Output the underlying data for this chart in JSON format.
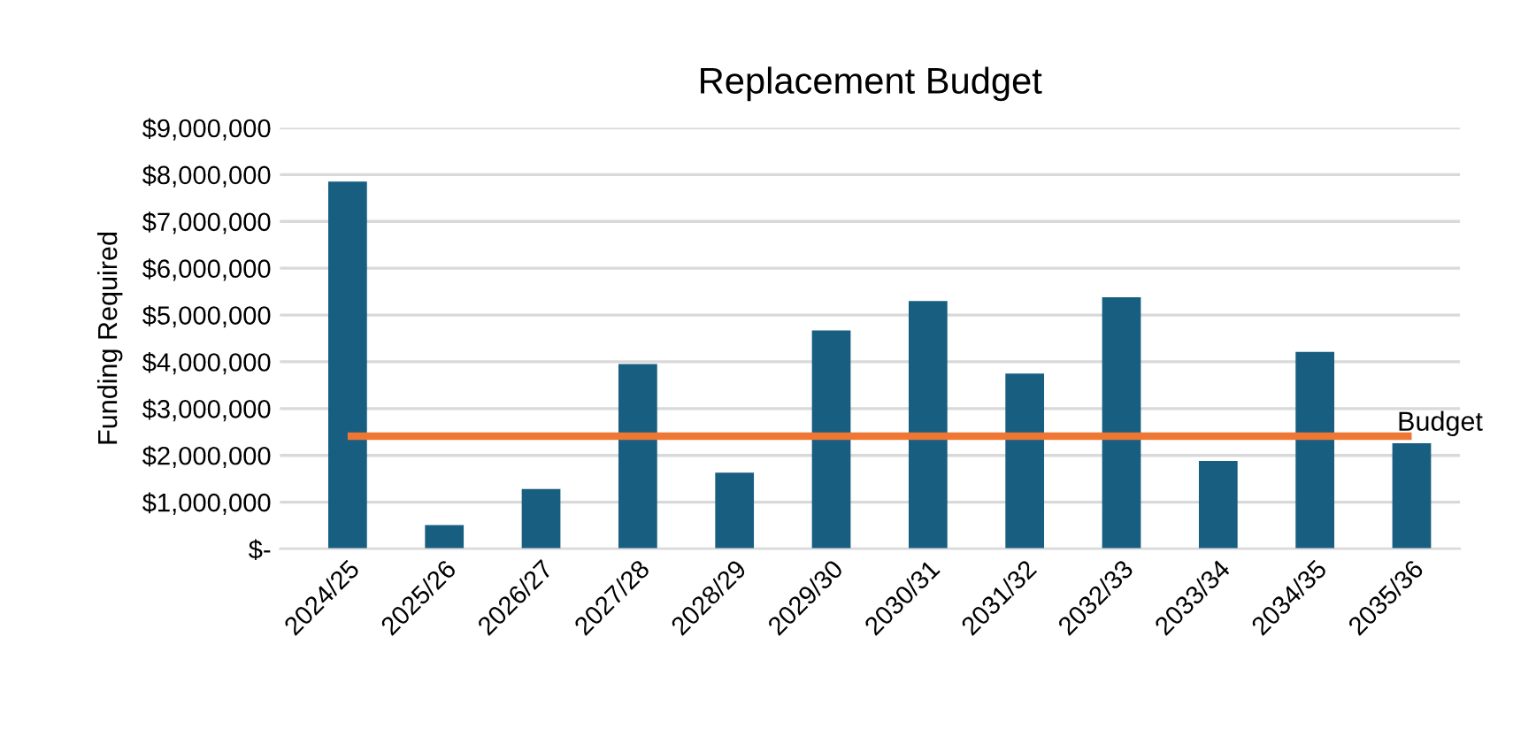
{
  "chart_data": {
    "type": "bar",
    "title": "Replacement Budget",
    "ylabel": "Funding Required",
    "categories": [
      "2024/25",
      "2025/26",
      "2026/27",
      "2027/28",
      "2028/29",
      "2029/30",
      "2030/31",
      "2031/32",
      "2032/33",
      "2033/34",
      "2034/35",
      "2035/36"
    ],
    "series": [
      {
        "color": "#175e81",
        "values": [
          7850000,
          510000,
          1280000,
          3950000,
          1630000,
          4670000,
          5300000,
          3750000,
          5380000,
          1880000,
          4210000,
          2260000
        ]
      },
      {
        "type": "line",
        "name": "Budget",
        "color": "#ee7733",
        "values": [
          2410000,
          2410000,
          2410000,
          2410000,
          2410000,
          2410000,
          2410000,
          2410000,
          2410000,
          2410000,
          2410000,
          2410000
        ]
      }
    ],
    "ylim": [
      0,
      9000000
    ],
    "yticks": [
      {
        "value": 0,
        "label": "$-"
      },
      {
        "value": 1000000,
        "label": "$1,000,000"
      },
      {
        "value": 2000000,
        "label": "$2,000,000"
      },
      {
        "value": 3000000,
        "label": "$3,000,000"
      },
      {
        "value": 4000000,
        "label": "$4,000,000"
      },
      {
        "value": 5000000,
        "label": "$5,000,000"
      },
      {
        "value": 6000000,
        "label": "$6,000,000"
      },
      {
        "value": 7000000,
        "label": "$7,000,000"
      },
      {
        "value": 8000000,
        "label": "$8,000,000"
      },
      {
        "value": 9000000,
        "label": "$9,000,000"
      }
    ],
    "grid": "y",
    "legend": false
  }
}
